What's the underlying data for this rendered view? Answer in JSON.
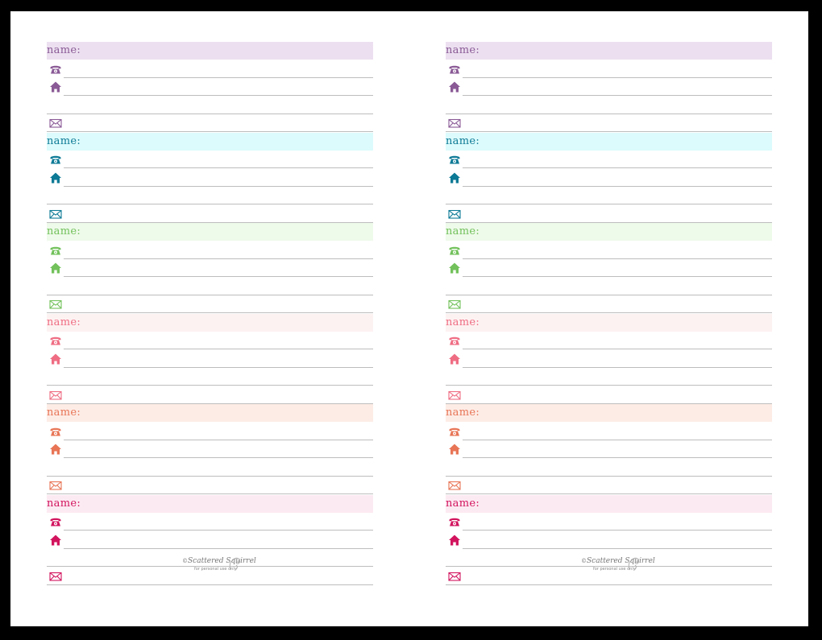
{
  "entry_label": "name:",
  "colors": [
    {
      "text": "#8a5a96",
      "bg": "#ece0f0",
      "icon": "#8a5a96"
    },
    {
      "text": "#0d7a96",
      "bg": "#dcfbfc",
      "icon": "#0d7a96"
    },
    {
      "text": "#72c15b",
      "bg": "#eefaea",
      "icon": "#72c15b"
    },
    {
      "text": "#ef6d83",
      "bg": "#fdf2f2",
      "icon": "#ef6d83"
    },
    {
      "text": "#e87556",
      "bg": "#fdece6",
      "icon": "#e87556"
    },
    {
      "text": "#d2145e",
      "bg": "#fceaf2",
      "icon": "#d2145e"
    }
  ],
  "icons": {
    "phone": "phone-icon",
    "home": "home-icon",
    "email": "envelope-icon"
  },
  "footer": {
    "brand": "Scattered Squirrel",
    "copyright": "©",
    "note": "for personal use only"
  }
}
